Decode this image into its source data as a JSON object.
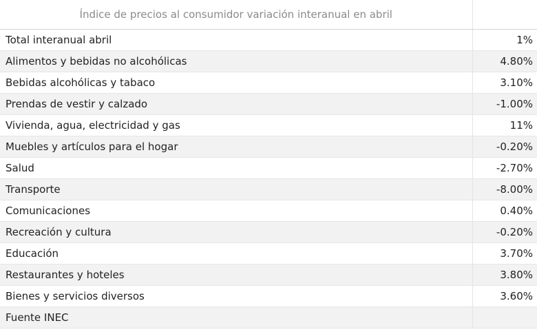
{
  "table": {
    "title": "Índice de precios al consumidor variación interanual en abril",
    "value_header": "",
    "rows": [
      {
        "label": "Total interanual abril",
        "value": "1%"
      },
      {
        "label": "Alimentos y bebidas no alcohólicas",
        "value": "4.80%"
      },
      {
        "label": "Bebidas alcohólicas y tabaco",
        "value": "3.10%"
      },
      {
        "label": "Prendas de vestir y calzado",
        "value": "-1.00%"
      },
      {
        "label": "Vivienda, agua, electricidad y gas",
        "value": "11%"
      },
      {
        "label": "Muebles y artículos para el hogar",
        "value": "-0.20%"
      },
      {
        "label": "Salud",
        "value": "-2.70%"
      },
      {
        "label": "Transporte",
        "value": "-8.00%"
      },
      {
        "label": "Comunicaciones",
        "value": "0.40%"
      },
      {
        "label": "Recreación y cultura",
        "value": "-0.20%"
      },
      {
        "label": "Educación",
        "value": "3.70%"
      },
      {
        "label": "Restaurantes y hoteles",
        "value": "3.80%"
      },
      {
        "label": "Bienes y servicios diversos",
        "value": "3.60%"
      },
      {
        "label": "Fuente INEC",
        "value": ""
      }
    ]
  },
  "colors": {
    "header_text": "#8a8a8a",
    "row_alt_background": "#f2f2f2",
    "row_background": "#ffffff",
    "text": "#222222"
  }
}
